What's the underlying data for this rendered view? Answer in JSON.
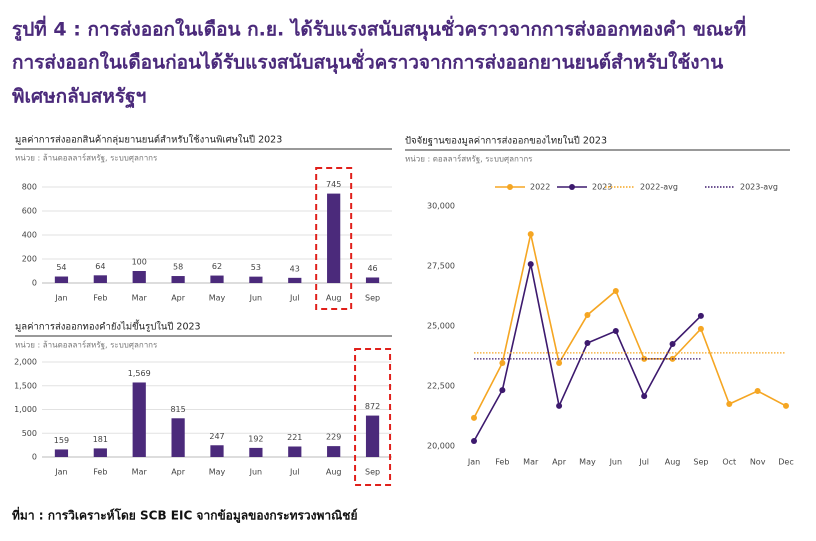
{
  "header": {
    "title_lines": [
      "รูปที่ 4 : การส่งออกในเดือน ก.ย. ได้รับแรงสนับสนุนชั่วคราวจากการส่งออกทองคำ ขณะที่",
      "การส่งออกในเดือนก่อนได้รับแรงสนับสนุนชั่วคราวจากการส่งออกยานยนต์สำหรับใช้งาน",
      "พิเศษกลับสหรัฐฯ"
    ]
  },
  "source": "ที่มา : การวิเคราะห์โดย SCB EIC จากข้อมูลของกระทรวงพาณิชย์",
  "chart_data": [
    {
      "type": "bar",
      "title": "มูลค่าการส่งออกสินค้ากลุ่มยานยนต์สำหรับใช้งานพิเศษในปี 2023",
      "subtitle": "หน่วย : ล้านดอลลาร์สหรัฐ, ระบบศุลกากร",
      "categories": [
        "Jan",
        "Feb",
        "Mar",
        "Apr",
        "May",
        "Jun",
        "Jul",
        "Aug",
        "Sep"
      ],
      "values": [
        54,
        64,
        100,
        58,
        62,
        53,
        43,
        745,
        46
      ],
      "color": "#4b2a7b",
      "ylim": [
        0,
        800
      ],
      "yticks": [
        0,
        200,
        400,
        600,
        800
      ],
      "grid": true,
      "highlight": "Aug"
    },
    {
      "type": "bar",
      "title": "มูลค่าการส่งออกทองคำยังไม่ขึ้นรูปในปี 2023",
      "subtitle": "หน่วย : ล้านดอลลาร์สหรัฐ, ระบบศุลกากร",
      "categories": [
        "Jan",
        "Feb",
        "Mar",
        "Apr",
        "May",
        "Jun",
        "Jul",
        "Aug",
        "Sep"
      ],
      "values": [
        159,
        181,
        1569,
        815,
        247,
        192,
        221,
        229,
        872
      ],
      "value_labels": [
        "159",
        "181",
        "1,569",
        "815",
        "247",
        "192",
        "221",
        "229",
        "872"
      ],
      "color": "#4b2a7b",
      "ylim": [
        0,
        2000
      ],
      "yticks": [
        0,
        500,
        {
          "value": 1000,
          "label": "1,000"
        },
        {
          "value": 1500,
          "label": "1,500"
        },
        {
          "value": 2000,
          "label": "2,000"
        }
      ],
      "grid": true,
      "highlight": "Sep"
    },
    {
      "type": "line",
      "title": "ปัจจัยฐานของมูลค่าการส่งออกของไทยในปี 2023",
      "subtitle": "หน่วย : ดอลลาร์สหรัฐ, ระบบศุลกากร",
      "categories": [
        "Jan",
        "Feb",
        "Mar",
        "Apr",
        "May",
        "Jun",
        "Jul",
        "Aug",
        "Sep",
        "Oct",
        "Nov",
        "Dec"
      ],
      "series": [
        {
          "name": "2022",
          "color": "#f5a623",
          "values": [
            21170,
            23460,
            28830,
            23460,
            25460,
            26460,
            23630,
            23630,
            24880,
            21750,
            22290,
            21670
          ]
        },
        {
          "name": "2023",
          "color": "#3d1a6e",
          "values": [
            20210,
            22330,
            27580,
            21670,
            24290,
            24790,
            22080,
            24250,
            25420,
            null,
            null,
            null
          ]
        },
        {
          "name": "2022-avg",
          "color": "#f5a623",
          "dotted": true,
          "values": [
            23880,
            23880,
            23880,
            23880,
            23880,
            23880,
            23880,
            23880,
            23880,
            23880,
            23880,
            23880
          ]
        },
        {
          "name": "2023-avg",
          "color": "#3d1a6e",
          "dotted": true,
          "values": [
            23630,
            23630,
            23630,
            23630,
            23630,
            23630,
            23630,
            23630,
            23630,
            null,
            null,
            null
          ]
        }
      ],
      "ylim": [
        20000,
        30000
      ],
      "yticks": [
        {
          "value": 20000,
          "label": "20,000"
        },
        {
          "value": 22500,
          "label": "22,500"
        },
        {
          "value": 25000,
          "label": "25,000"
        },
        {
          "value": 27500,
          "label": "27,500"
        },
        {
          "value": 30000,
          "label": "30,000"
        }
      ],
      "grid": false,
      "legend": "top"
    }
  ]
}
